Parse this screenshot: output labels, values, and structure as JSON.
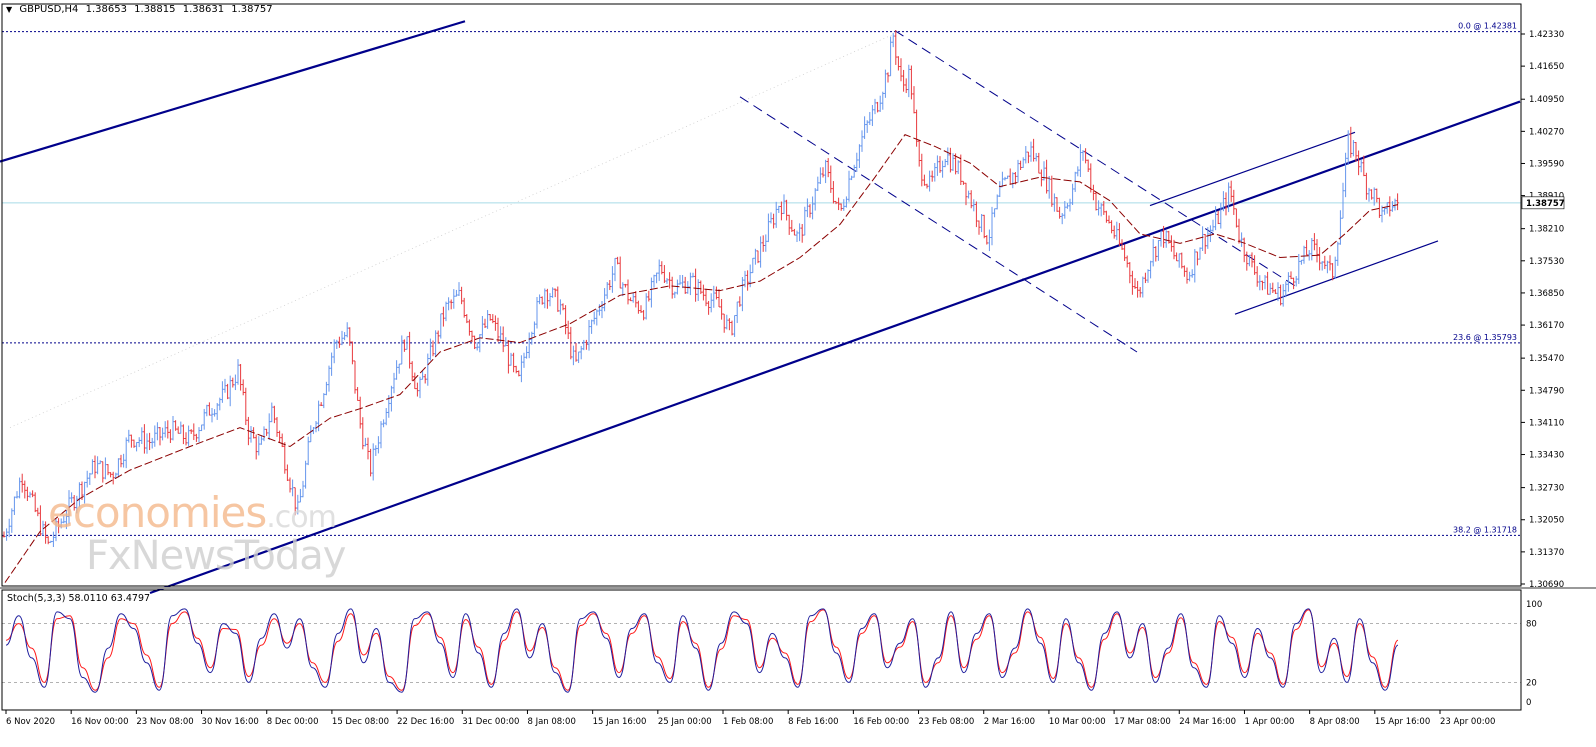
{
  "header": {
    "arrow": "▼",
    "symbol": "GBPUSD,H4",
    "open": "1.38653",
    "high": "1.38815",
    "low": "1.38631",
    "close": "1.38757"
  },
  "stoch_header": {
    "label": "Stoch(5,3,3)",
    "main": "58.0110",
    "signal": "63.4797"
  },
  "watermark": {
    "line1": "economies",
    "line1b": ".com",
    "line2": "FxNewsToday"
  },
  "colors": {
    "up": "#6495ed",
    "down": "#e8393d",
    "ma": "#8b0000",
    "trend": "#00008b",
    "current_price_line": "#a8dbe8",
    "stoch_main": "#1e1e9e",
    "stoch_signal": "#ff1a1a"
  },
  "chart_data": [
    {
      "type": "candlestick",
      "title": "GBPUSD,H4",
      "y_tick_labels": [
        "1.42330",
        "1.41650",
        "1.40950",
        "1.40270",
        "1.39590",
        "1.38910",
        "1.38210",
        "1.37530",
        "1.36850",
        "1.36170",
        "1.35470",
        "1.34790",
        "1.34110",
        "1.33430",
        "1.32730",
        "1.32050",
        "1.31370",
        "1.30690"
      ],
      "x_tick_labels": [
        "6 Nov 2020",
        "16 Nov 00:00",
        "23 Nov 08:00",
        "30 Nov 16:00",
        "8 Dec 00:00",
        "15 Dec 08:00",
        "22 Dec 16:00",
        "31 Dec 00:00",
        "8 Jan 08:00",
        "15 Jan 16:00",
        "25 Jan 00:00",
        "1 Feb 08:00",
        "8 Feb 16:00",
        "16 Feb 00:00",
        "23 Feb 08:00",
        "2 Mar 16:00",
        "10 Mar 00:00",
        "17 Mar 08:00",
        "24 Mar 16:00",
        "1 Apr 00:00",
        "8 Apr 08:00",
        "15 Apr 16:00",
        "23 Apr 00:00"
      ],
      "ylim": [
        1.3055,
        1.427
      ],
      "current_price": "1.38757",
      "fibonacci_levels": [
        {
          "label": "0.0 @ 1.42381",
          "value": 1.42381
        },
        {
          "label": "23.6 @ 1.35793",
          "value": 1.35793
        },
        {
          "label": "38.2 @ 1.31718",
          "value": 1.31718
        }
      ],
      "price_path": [
        {
          "x": 0,
          "y": 1.314
        },
        {
          "x": 10,
          "y": 1.3215
        },
        {
          "x": 22,
          "y": 1.33
        },
        {
          "x": 32,
          "y": 1.324
        },
        {
          "x": 48,
          "y": 1.315
        },
        {
          "x": 62,
          "y": 1.3205
        },
        {
          "x": 78,
          "y": 1.3265
        },
        {
          "x": 95,
          "y": 1.332
        },
        {
          "x": 112,
          "y": 1.33
        },
        {
          "x": 130,
          "y": 1.338
        },
        {
          "x": 150,
          "y": 1.337
        },
        {
          "x": 170,
          "y": 1.3395
        },
        {
          "x": 190,
          "y": 1.3375
        },
        {
          "x": 210,
          "y": 1.344
        },
        {
          "x": 225,
          "y": 1.347
        },
        {
          "x": 238,
          "y": 1.352
        },
        {
          "x": 248,
          "y": 1.3395
        },
        {
          "x": 260,
          "y": 1.335
        },
        {
          "x": 272,
          "y": 1.344
        },
        {
          "x": 285,
          "y": 1.333
        },
        {
          "x": 298,
          "y": 1.322
        },
        {
          "x": 312,
          "y": 1.34
        },
        {
          "x": 322,
          "y": 1.347
        },
        {
          "x": 335,
          "y": 1.358
        },
        {
          "x": 348,
          "y": 1.36
        },
        {
          "x": 360,
          "y": 1.341
        },
        {
          "x": 370,
          "y": 1.331
        },
        {
          "x": 380,
          "y": 1.3395
        },
        {
          "x": 392,
          "y": 1.35
        },
        {
          "x": 405,
          "y": 1.359
        },
        {
          "x": 418,
          "y": 1.347
        },
        {
          "x": 430,
          "y": 1.355
        },
        {
          "x": 445,
          "y": 1.365
        },
        {
          "x": 460,
          "y": 1.368
        },
        {
          "x": 475,
          "y": 1.358
        },
        {
          "x": 490,
          "y": 1.363
        },
        {
          "x": 505,
          "y": 1.357
        },
        {
          "x": 518,
          "y": 1.349
        },
        {
          "x": 530,
          "y": 1.361
        },
        {
          "x": 545,
          "y": 1.3695
        },
        {
          "x": 560,
          "y": 1.366
        },
        {
          "x": 575,
          "y": 1.353
        },
        {
          "x": 588,
          "y": 1.36
        },
        {
          "x": 600,
          "y": 1.366
        },
        {
          "x": 615,
          "y": 1.374
        },
        {
          "x": 630,
          "y": 1.367
        },
        {
          "x": 645,
          "y": 1.365
        },
        {
          "x": 660,
          "y": 1.374
        },
        {
          "x": 675,
          "y": 1.3695
        },
        {
          "x": 690,
          "y": 1.371
        },
        {
          "x": 705,
          "y": 1.368
        },
        {
          "x": 718,
          "y": 1.366
        },
        {
          "x": 730,
          "y": 1.36
        },
        {
          "x": 740,
          "y": 1.368
        },
        {
          "x": 752,
          "y": 1.374
        },
        {
          "x": 765,
          "y": 1.38
        },
        {
          "x": 780,
          "y": 1.388
        },
        {
          "x": 798,
          "y": 1.38
        },
        {
          "x": 812,
          "y": 1.388
        },
        {
          "x": 825,
          "y": 1.395
        },
        {
          "x": 840,
          "y": 1.385
        },
        {
          "x": 852,
          "y": 1.395
        },
        {
          "x": 865,
          "y": 1.403
        },
        {
          "x": 878,
          "y": 1.409
        },
        {
          "x": 888,
          "y": 1.416
        },
        {
          "x": 893,
          "y": 1.4232
        },
        {
          "x": 902,
          "y": 1.412
        },
        {
          "x": 910,
          "y": 1.415
        },
        {
          "x": 918,
          "y": 1.396
        },
        {
          "x": 930,
          "y": 1.391
        },
        {
          "x": 945,
          "y": 1.398
        },
        {
          "x": 960,
          "y": 1.394
        },
        {
          "x": 975,
          "y": 1.386
        },
        {
          "x": 988,
          "y": 1.38
        },
        {
          "x": 1000,
          "y": 1.39
        },
        {
          "x": 1015,
          "y": 1.394
        },
        {
          "x": 1030,
          "y": 1.399
        },
        {
          "x": 1045,
          "y": 1.393
        },
        {
          "x": 1060,
          "y": 1.385
        },
        {
          "x": 1072,
          "y": 1.39
        },
        {
          "x": 1083,
          "y": 1.399
        },
        {
          "x": 1095,
          "y": 1.388
        },
        {
          "x": 1110,
          "y": 1.383
        },
        {
          "x": 1125,
          "y": 1.376
        },
        {
          "x": 1138,
          "y": 1.368
        },
        {
          "x": 1150,
          "y": 1.376
        },
        {
          "x": 1163,
          "y": 1.381
        },
        {
          "x": 1175,
          "y": 1.376
        },
        {
          "x": 1188,
          "y": 1.372
        },
        {
          "x": 1200,
          "y": 1.379
        },
        {
          "x": 1215,
          "y": 1.383
        },
        {
          "x": 1230,
          "y": 1.39
        },
        {
          "x": 1240,
          "y": 1.38
        },
        {
          "x": 1252,
          "y": 1.374
        },
        {
          "x": 1265,
          "y": 1.37
        },
        {
          "x": 1280,
          "y": 1.368
        },
        {
          "x": 1295,
          "y": 1.373
        },
        {
          "x": 1310,
          "y": 1.378
        },
        {
          "x": 1322,
          "y": 1.376
        },
        {
          "x": 1332,
          "y": 1.372
        },
        {
          "x": 1340,
          "y": 1.384
        },
        {
          "x": 1348,
          "y": 1.4
        },
        {
          "x": 1355,
          "y": 1.399
        },
        {
          "x": 1365,
          "y": 1.392
        },
        {
          "x": 1375,
          "y": 1.389
        },
        {
          "x": 1383,
          "y": 1.384
        },
        {
          "x": 1390,
          "y": 1.387
        },
        {
          "x": 1398,
          "y": 1.3876
        }
      ],
      "moving_average_path": [
        {
          "x": 5,
          "y": 1.3072
        },
        {
          "x": 40,
          "y": 1.318
        },
        {
          "x": 80,
          "y": 1.325
        },
        {
          "x": 130,
          "y": 1.331
        },
        {
          "x": 190,
          "y": 1.336
        },
        {
          "x": 240,
          "y": 1.34
        },
        {
          "x": 290,
          "y": 1.336
        },
        {
          "x": 330,
          "y": 1.342
        },
        {
          "x": 360,
          "y": 1.344
        },
        {
          "x": 400,
          "y": 1.347
        },
        {
          "x": 440,
          "y": 1.356
        },
        {
          "x": 480,
          "y": 1.359
        },
        {
          "x": 520,
          "y": 1.358
        },
        {
          "x": 570,
          "y": 1.362
        },
        {
          "x": 620,
          "y": 1.368
        },
        {
          "x": 670,
          "y": 1.37
        },
        {
          "x": 720,
          "y": 1.369
        },
        {
          "x": 760,
          "y": 1.371
        },
        {
          "x": 800,
          "y": 1.376
        },
        {
          "x": 840,
          "y": 1.383
        },
        {
          "x": 875,
          "y": 1.393
        },
        {
          "x": 905,
          "y": 1.402
        },
        {
          "x": 935,
          "y": 1.3995
        },
        {
          "x": 970,
          "y": 1.396
        },
        {
          "x": 1000,
          "y": 1.391
        },
        {
          "x": 1040,
          "y": 1.393
        },
        {
          "x": 1080,
          "y": 1.392
        },
        {
          "x": 1110,
          "y": 1.388
        },
        {
          "x": 1140,
          "y": 1.381
        },
        {
          "x": 1180,
          "y": 1.379
        },
        {
          "x": 1215,
          "y": 1.381
        },
        {
          "x": 1245,
          "y": 1.379
        },
        {
          "x": 1280,
          "y": 1.376
        },
        {
          "x": 1320,
          "y": 1.3765
        },
        {
          "x": 1345,
          "y": 1.381
        },
        {
          "x": 1370,
          "y": 1.386
        },
        {
          "x": 1398,
          "y": 1.3872
        }
      ],
      "trend_lines": [
        {
          "name": "upper-channel",
          "from": {
            "x": 0,
            "y": 1.3963
          },
          "to": {
            "x": 465,
            "y": 1.426
          }
        },
        {
          "name": "main-support",
          "from": {
            "x": 150,
            "y": 1.305
          },
          "to": {
            "x": 1520,
            "y": 1.409
          }
        },
        {
          "name": "descending-channel-top",
          "from": {
            "x": 895,
            "y": 1.424
          },
          "to": {
            "x": 1295,
            "y": 1.37
          }
        },
        {
          "name": "descending-channel-bottom",
          "from": {
            "x": 740,
            "y": 1.41
          },
          "to": {
            "x": 1137,
            "y": 1.356
          }
        },
        {
          "name": "rising-channel-top",
          "from": {
            "x": 1150,
            "y": 1.387
          },
          "to": {
            "x": 1355,
            "y": 1.4025
          }
        },
        {
          "name": "rising-channel-bottom",
          "from": {
            "x": 1235,
            "y": 1.364
          },
          "to": {
            "x": 1438,
            "y": 1.3795
          }
        }
      ]
    },
    {
      "type": "line",
      "title": "Stoch(5,3,3)",
      "y_tick_labels": [
        "100",
        "80",
        "20",
        "0"
      ],
      "ylim": [
        0,
        100
      ],
      "reference_levels": [
        80,
        20
      ],
      "series": [
        {
          "name": "main",
          "values": [
            58,
            88,
            45,
            15,
            92,
            85,
            25,
            10,
            55,
            90,
            75,
            40,
            12,
            88,
            95,
            60,
            30,
            80,
            70,
            20,
            65,
            90,
            55,
            85,
            35,
            15,
            70,
            95,
            40,
            75,
            20,
            10,
            85,
            92,
            60,
            25,
            90,
            50,
            15,
            70,
            95,
            45,
            80,
            30,
            10,
            85,
            92,
            65,
            25,
            75,
            90,
            40,
            20,
            88,
            55,
            12,
            60,
            92,
            80,
            30,
            70,
            45,
            15,
            88,
            95,
            50,
            20,
            75,
            90,
            35,
            60,
            85,
            15,
            45,
            92,
            30,
            70,
            90,
            25,
            55,
            95,
            60,
            20,
            85,
            40,
            12,
            70,
            92,
            45,
            80,
            20,
            55,
            90,
            35,
            15,
            88,
            60,
            25,
            75,
            45,
            15,
            80,
            95,
            30,
            65,
            20,
            85,
            40,
            12,
            58
          ]
        },
        {
          "name": "signal",
          "values": [
            63,
            80,
            55,
            20,
            85,
            88,
            35,
            12,
            45,
            85,
            80,
            48,
            15,
            80,
            92,
            65,
            35,
            75,
            74,
            26,
            58,
            85,
            60,
            80,
            40,
            20,
            62,
            90,
            48,
            70,
            26,
            12,
            78,
            90,
            66,
            30,
            84,
            56,
            18,
            63,
            92,
            52,
            76,
            35,
            12,
            78,
            90,
            70,
            30,
            70,
            88,
            46,
            24,
            82,
            60,
            15,
            54,
            88,
            84,
            35,
            65,
            50,
            18,
            82,
            94,
            56,
            24,
            70,
            88,
            40,
            56,
            82,
            20,
            40,
            88,
            35,
            64,
            88,
            30,
            50,
            92,
            66,
            24,
            80,
            45,
            15,
            64,
            90,
            50,
            76,
            25,
            50,
            86,
            40,
            18,
            82,
            66,
            30,
            70,
            50,
            18,
            74,
            94,
            36,
            60,
            26,
            80,
            46,
            15,
            63
          ]
        }
      ]
    }
  ]
}
